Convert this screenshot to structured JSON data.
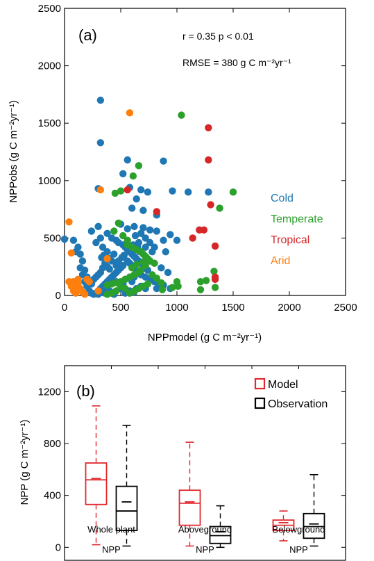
{
  "chart_data": [
    {
      "type": "scatter",
      "panel_label": "(a)",
      "annotations": [
        "r = 0.35  p < 0.01",
        "RMSE = 380 g C m⁻²yr⁻¹"
      ],
      "xlabel": "NPPmodel (g C m⁻²yr⁻¹)",
      "ylabel": "NPPobs (g C m⁻²yr⁻¹)",
      "xlim": [
        0,
        2500
      ],
      "ylim": [
        0,
        2500
      ],
      "xticks": [
        0,
        500,
        1000,
        1500,
        2000,
        2500
      ],
      "yticks": [
        0,
        500,
        1000,
        1500,
        2000,
        2500
      ],
      "legend_placement": "right",
      "series": [
        {
          "name": "Cold",
          "color": "#1f77b4",
          "points": [
            [
              320,
              1700
            ],
            [
              320,
              1330
            ],
            [
              560,
              1180
            ],
            [
              520,
              1060
            ],
            [
              880,
              1170
            ],
            [
              300,
              930
            ],
            [
              580,
              940
            ],
            [
              680,
              920
            ],
            [
              740,
              900
            ],
            [
              960,
              910
            ],
            [
              1100,
              900
            ],
            [
              1280,
              900
            ],
            [
              640,
              840
            ],
            [
              600,
              760
            ],
            [
              700,
              740
            ],
            [
              820,
              700
            ],
            [
              500,
              620
            ],
            [
              560,
              580
            ],
            [
              620,
              600
            ],
            [
              700,
              590
            ],
            [
              760,
              570
            ],
            [
              820,
              560
            ],
            [
              880,
              480
            ],
            [
              940,
              530
            ],
            [
              1000,
              480
            ],
            [
              240,
              560
            ],
            [
              300,
              600
            ],
            [
              320,
              500
            ],
            [
              280,
              460
            ],
            [
              340,
              420
            ],
            [
              380,
              540
            ],
            [
              420,
              500
            ],
            [
              460,
              480
            ],
            [
              480,
              460
            ],
            [
              520,
              440
            ],
            [
              540,
              420
            ],
            [
              560,
              400
            ],
            [
              580,
              380
            ],
            [
              600,
              360
            ],
            [
              620,
              340
            ],
            [
              640,
              320
            ],
            [
              660,
              300
            ],
            [
              560,
              300
            ],
            [
              580,
              280
            ],
            [
              600,
              260
            ],
            [
              620,
              240
            ],
            [
              520,
              260
            ],
            [
              500,
              240
            ],
            [
              480,
              220
            ],
            [
              460,
              200
            ],
            [
              440,
              180
            ],
            [
              420,
              160
            ],
            [
              400,
              140
            ],
            [
              380,
              120
            ],
            [
              360,
              100
            ],
            [
              340,
              80
            ],
            [
              320,
              60
            ],
            [
              300,
              40
            ],
            [
              280,
              20
            ],
            [
              260,
              10
            ],
            [
              380,
              60
            ],
            [
              400,
              40
            ],
            [
              420,
              20
            ],
            [
              440,
              10
            ],
            [
              340,
              30
            ],
            [
              360,
              20
            ],
            [
              300,
              10
            ],
            [
              240,
              100
            ],
            [
              200,
              160
            ],
            [
              180,
              220
            ],
            [
              160,
              300
            ],
            [
              140,
              360
            ],
            [
              120,
              420
            ],
            [
              100,
              380
            ],
            [
              80,
              480
            ],
            [
              0,
              490
            ],
            [
              140,
              240
            ],
            [
              160,
              180
            ],
            [
              180,
              120
            ],
            [
              200,
              80
            ],
            [
              220,
              40
            ],
            [
              240,
              20
            ],
            [
              600,
              120
            ],
            [
              620,
              160
            ],
            [
              640,
              200
            ],
            [
              680,
              180
            ],
            [
              720,
              160
            ],
            [
              760,
              140
            ],
            [
              800,
              120
            ],
            [
              840,
              100
            ],
            [
              880,
              90
            ],
            [
              780,
              380
            ],
            [
              720,
              420
            ],
            [
              660,
              460
            ],
            [
              760,
              300
            ],
            [
              700,
              260
            ],
            [
              740,
              220
            ],
            [
              900,
              380
            ],
            [
              680,
              80
            ],
            [
              640,
              60
            ],
            [
              520,
              100
            ],
            [
              540,
              140
            ],
            [
              460,
              120
            ],
            [
              440,
              360
            ],
            [
              400,
              320
            ],
            [
              360,
              280
            ],
            [
              340,
              240
            ],
            [
              320,
              200
            ],
            [
              300,
              180
            ],
            [
              280,
              160
            ],
            [
              260,
              140
            ],
            [
              720,
              60
            ],
            [
              820,
              60
            ],
            [
              940,
              60
            ],
            [
              860,
              240
            ],
            [
              920,
              200
            ],
            [
              540,
              20
            ],
            [
              580,
              40
            ],
            [
              620,
              30
            ],
            [
              500,
              60
            ],
            [
              460,
              40
            ],
            [
              420,
              300
            ],
            [
              380,
              380
            ],
            [
              350,
              350
            ],
            [
              330,
              330
            ],
            [
              380,
              250
            ],
            [
              400,
              230
            ],
            [
              460,
              260
            ],
            [
              480,
              300
            ],
            [
              510,
              330
            ],
            [
              530,
              350
            ],
            [
              650,
              420
            ],
            [
              670,
              380
            ],
            [
              610,
              440
            ],
            [
              590,
              420
            ],
            [
              630,
              520
            ],
            [
              680,
              540
            ],
            [
              720,
              500
            ],
            [
              760,
              460
            ],
            [
              800,
              420
            ]
          ]
        },
        {
          "name": "Temperate",
          "color": "#2ca02c",
          "points": [
            [
              1040,
              1570
            ],
            [
              500,
              910
            ],
            [
              660,
              1130
            ],
            [
              610,
              1040
            ],
            [
              450,
              890
            ],
            [
              1500,
              900
            ],
            [
              1380,
              760
            ],
            [
              480,
              630
            ],
            [
              440,
              560
            ],
            [
              560,
              440
            ],
            [
              600,
              420
            ],
            [
              640,
              400
            ],
            [
              680,
              380
            ],
            [
              700,
              360
            ],
            [
              720,
              340
            ],
            [
              740,
              320
            ],
            [
              760,
              300
            ],
            [
              720,
              260
            ],
            [
              680,
              220
            ],
            [
              660,
              200
            ],
            [
              620,
              180
            ],
            [
              580,
              160
            ],
            [
              540,
              140
            ],
            [
              500,
              120
            ],
            [
              460,
              110
            ],
            [
              420,
              100
            ],
            [
              380,
              90
            ],
            [
              1000,
              120
            ],
            [
              1010,
              80
            ],
            [
              960,
              70
            ],
            [
              1210,
              120
            ],
            [
              1210,
              50
            ],
            [
              1330,
              210
            ],
            [
              1340,
              70
            ],
            [
              870,
              50
            ],
            [
              1260,
              130
            ],
            [
              740,
              100
            ],
            [
              700,
              80
            ],
            [
              660,
              60
            ],
            [
              620,
              40
            ],
            [
              580,
              20
            ],
            [
              540,
              60
            ],
            [
              500,
              80
            ],
            [
              460,
              40
            ],
            [
              420,
              20
            ],
            [
              380,
              10
            ],
            [
              600,
              240
            ],
            [
              640,
              270
            ],
            [
              700,
              290
            ],
            [
              800,
              280
            ],
            [
              560,
              480
            ],
            [
              520,
              520
            ],
            [
              780,
              180
            ],
            [
              820,
              150
            ],
            [
              860,
              110
            ]
          ]
        },
        {
          "name": "Tropical",
          "color": "#d62728",
          "points": [
            [
              1280,
              1460
            ],
            [
              1280,
              1180
            ],
            [
              1300,
              790
            ],
            [
              560,
              920
            ],
            [
              820,
              730
            ],
            [
              1200,
              570
            ],
            [
              1240,
              570
            ],
            [
              1140,
              500
            ],
            [
              1340,
              430
            ],
            [
              1340,
              160
            ],
            [
              1340,
              140
            ]
          ]
        },
        {
          "name": "Arid",
          "color": "#ff7f0e",
          "points": [
            [
              580,
              1590
            ],
            [
              320,
              920
            ],
            [
              40,
              640
            ],
            [
              60,
              370
            ],
            [
              40,
              120
            ],
            [
              60,
              80
            ],
            [
              80,
              40
            ],
            [
              100,
              20
            ],
            [
              120,
              100
            ],
            [
              140,
              60
            ],
            [
              160,
              30
            ],
            [
              180,
              10
            ],
            [
              80,
              120
            ],
            [
              100,
              60
            ],
            [
              120,
              140
            ],
            [
              200,
              140
            ],
            [
              220,
              120
            ],
            [
              380,
              320
            ],
            [
              300,
              40
            ]
          ]
        }
      ]
    },
    {
      "type": "boxplot",
      "panel_label": "(b)",
      "ylabel": "NPP (g C m⁻²yr⁻¹)",
      "ylim": [
        -100,
        1400
      ],
      "yticks": [
        0,
        400,
        800,
        1200
      ],
      "categories": [
        "Whole plant\nNPP",
        "Aboveground\nNPP",
        "Belowground\nNPP"
      ],
      "category_lines": [
        [
          "Whole plant",
          "NPP"
        ],
        [
          "Aboveground",
          "NPP"
        ],
        [
          "Belowground",
          "NPP"
        ]
      ],
      "legend_placement": "top-right",
      "series": [
        {
          "name": "Model",
          "color": "#e0282e",
          "boxes": [
            {
              "min": 20,
              "q1": 330,
              "median": 520,
              "mean": 530,
              "q3": 650,
              "max": 1090
            },
            {
              "min": 10,
              "q1": 170,
              "median": 340,
              "mean": 350,
              "q3": 440,
              "max": 810
            },
            {
              "min": 50,
              "q1": 130,
              "median": 170,
              "mean": 190,
              "q3": 210,
              "max": 280
            }
          ]
        },
        {
          "name": "Observation",
          "color": "#000000",
          "boxes": [
            {
              "min": 10,
              "q1": 130,
              "median": 280,
              "mean": 350,
              "q3": 470,
              "max": 940
            },
            {
              "min": 0,
              "q1": 30,
              "median": 90,
              "mean": 120,
              "q3": 160,
              "max": 320
            },
            {
              "min": 10,
              "q1": 70,
              "median": 160,
              "mean": 180,
              "q3": 260,
              "max": 560
            }
          ]
        }
      ]
    }
  ]
}
